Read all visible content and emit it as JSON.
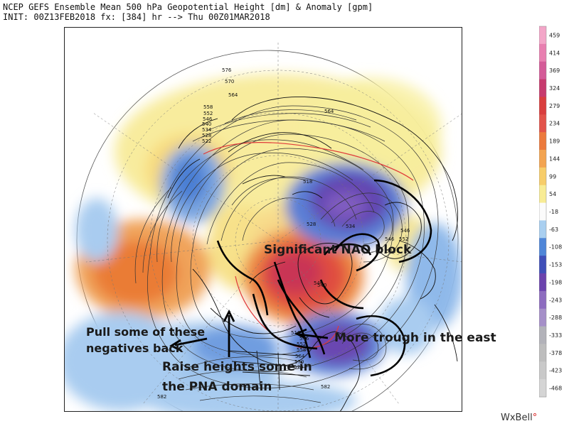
{
  "header": {
    "line1": "NCEP GEFS Ensemble Mean 500 hPa Geopotential Height [dm] & Anomaly [gpm]",
    "line2": "INIT: 00Z13FEB2018 fx: [384] hr --> Thu 00Z01MAR2018"
  },
  "colorbar": {
    "labels": [
      "459",
      "414",
      "369",
      "324",
      "279",
      "234",
      "189",
      "144",
      "99",
      "54",
      "-18",
      "-63",
      "-108",
      "-153",
      "-198",
      "-243",
      "-288",
      "-333",
      "-378",
      "-423",
      "-468"
    ],
    "colors": [
      "#f3a6c8",
      "#e87fb0",
      "#d45b98",
      "#c73b6e",
      "#d93e3e",
      "#e2534a",
      "#ec7a3d",
      "#f3a451",
      "#f7cd6a",
      "#f8ec95",
      "#fbfbfb",
      "#a9cff0",
      "#4f86d8",
      "#3f4fb8",
      "#6b43ad",
      "#8d6cbf",
      "#a58fc8",
      "#b2b2b9",
      "#bdbdbd",
      "#c9c9c9",
      "#d5d5d5"
    ]
  },
  "contour_labels": [
    "576",
    "570",
    "564",
    "558",
    "552",
    "546",
    "540",
    "534",
    "528",
    "522",
    "518",
    "528",
    "534",
    "540",
    "546",
    "552",
    "540",
    "546",
    "552",
    "516",
    "546",
    "552",
    "558",
    "564",
    "570",
    "576",
    "582",
    "582",
    "564"
  ],
  "annotations": {
    "nao": "Significant NAO block",
    "trough": "More trough in the east",
    "pull_line1": "Pull some of these",
    "pull_line2": "negatives back",
    "raise_line1": "Raise heights some in",
    "raise_line2": "the PNA domain"
  },
  "brand": {
    "name": "WxBell",
    "dot": "°"
  }
}
